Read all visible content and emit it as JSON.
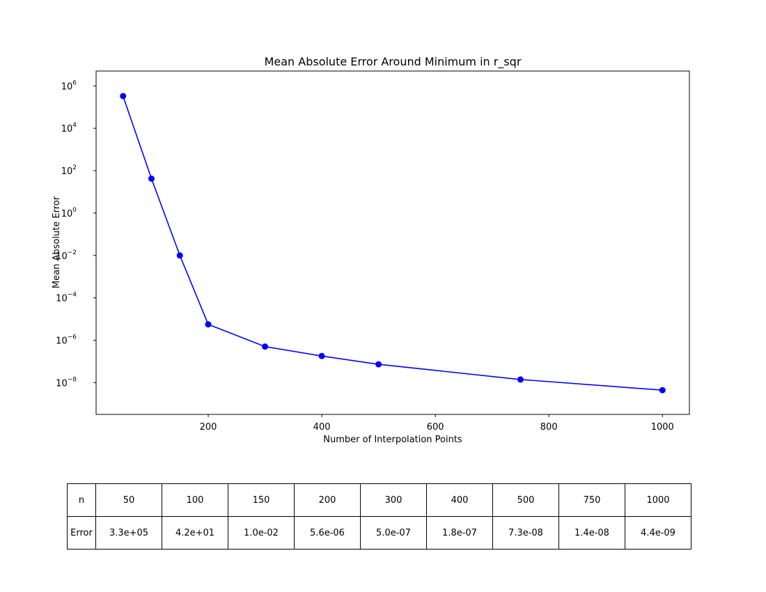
{
  "chart_data": {
    "type": "line",
    "title": "Mean Absolute Error Around Minimum in r_sqr",
    "xlabel": "Number of Interpolation Points",
    "ylabel": "Mean Absolute Error",
    "yscale": "log",
    "x": [
      50,
      100,
      150,
      200,
      300,
      400,
      500,
      750,
      1000
    ],
    "y": [
      330000.0,
      42,
      0.01,
      5.6e-06,
      5e-07,
      1.8e-07,
      7.3e-08,
      1.4e-08,
      4.4e-09
    ],
    "xlim": [
      2.5,
      1047.5
    ],
    "ylim_exponent": [
      -9.5,
      6.7
    ],
    "x_ticks": [
      200,
      400,
      600,
      800,
      1000
    ],
    "y_tick_exponents": [
      6,
      4,
      2,
      0,
      -2,
      -4,
      -6,
      -8
    ],
    "grid": false,
    "color": "#0000ff"
  },
  "table": {
    "row_headers": [
      "n",
      "Error"
    ],
    "n": [
      "50",
      "100",
      "150",
      "200",
      "300",
      "400",
      "500",
      "750",
      "1000"
    ],
    "error": [
      "3.3e+05",
      "4.2e+01",
      "1.0e-02",
      "5.6e-06",
      "5.0e-07",
      "1.8e-07",
      "7.3e-08",
      "1.4e-08",
      "4.4e-09"
    ]
  }
}
